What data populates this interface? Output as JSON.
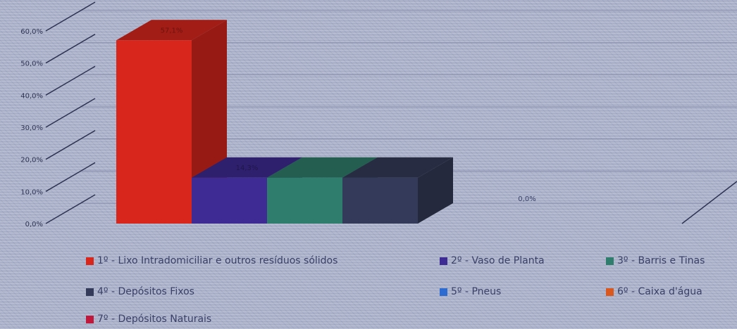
{
  "chart_data": {
    "type": "bar",
    "three_d": true,
    "ylim": [
      0,
      60
    ],
    "y_ticks": [
      "0,0%",
      "10,0%",
      "20,0%",
      "30,0%",
      "40,0%",
      "50,0%",
      "60,0%"
    ],
    "series": [
      {
        "name": "1º - Lixo Intradomiciliar  e outros resíduos sólidos",
        "value": 57.1,
        "label": "57,1%",
        "color": "#d8261d"
      },
      {
        "name": "2º - Vaso de Planta",
        "value": 14.3,
        "label": "14,3%",
        "color": "#3e2b93"
      },
      {
        "name": "3º - Barris e Tinas",
        "value": 14.3,
        "label": "",
        "color": "#2f7d6c"
      },
      {
        "name": "4º - Depósitos Fixos",
        "value": 14.3,
        "label": "",
        "color": "#343a59"
      },
      {
        "name": "5º - Pneus",
        "value": 0,
        "label": "",
        "color": "#2e6bd0"
      },
      {
        "name": "6º - Caixa d'água",
        "value": 0,
        "label": "0,0%",
        "color": "#d8581f"
      },
      {
        "name": "7º - Depósitos Naturais",
        "value": 0,
        "label": "",
        "color": "#c0183c"
      }
    ]
  }
}
